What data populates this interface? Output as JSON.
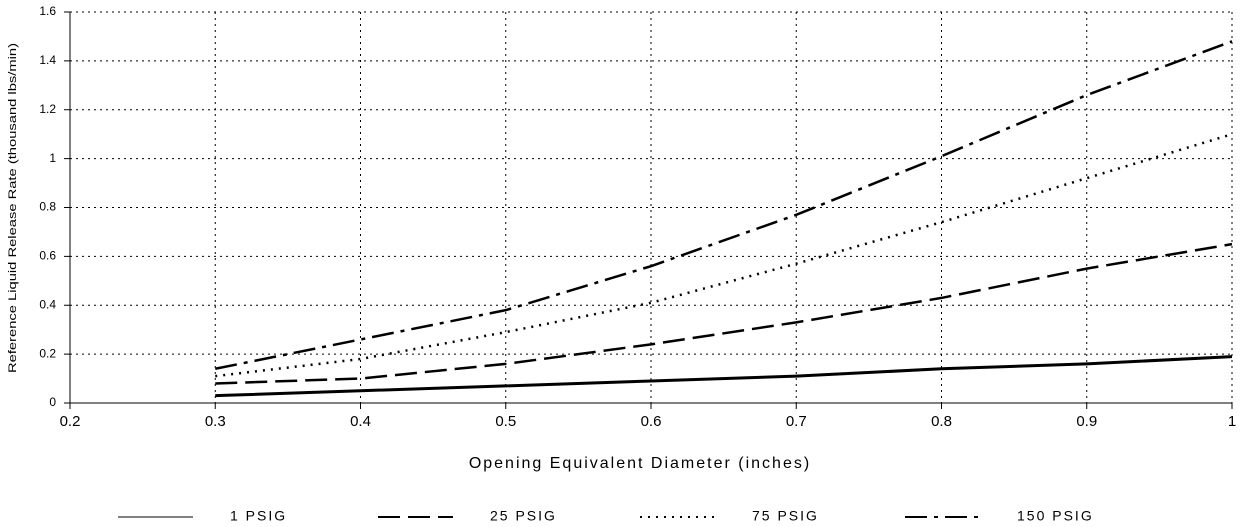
{
  "chart_data": {
    "type": "line",
    "xlabel": "Opening Equivalent Diameter (inches)",
    "ylabel": "Reference Liquid Release Rate (thousand lbs/min)",
    "x": [
      0.3,
      0.4,
      0.5,
      0.6,
      0.7,
      0.8,
      0.9,
      1
    ],
    "series": [
      {
        "name": "1 PSIG",
        "color": "#000000",
        "style": "solid",
        "values": [
          0.03,
          0.05,
          0.07,
          0.09,
          0.11,
          0.14,
          0.16,
          0.19
        ]
      },
      {
        "name": "25 PSIG",
        "color": "#000000",
        "style": "dashed",
        "values": [
          0.08,
          0.1,
          0.16,
          0.24,
          0.33,
          0.43,
          0.55,
          0.65
        ]
      },
      {
        "name": "75 PSIG",
        "color": "#000000",
        "style": "dotted",
        "values": [
          0.11,
          0.18,
          0.29,
          0.41,
          0.57,
          0.74,
          0.92,
          1.1
        ]
      },
      {
        "name": "150 PSIG",
        "color": "#000000",
        "style": "dashdot",
        "values": [
          0.14,
          0.26,
          0.38,
          0.56,
          0.77,
          1.01,
          1.26,
          1.48
        ]
      }
    ],
    "xlim": [
      0.2,
      1
    ],
    "xticks": [
      0.2,
      0.3,
      0.4,
      0.5,
      0.6,
      0.7,
      0.8,
      0.9,
      1
    ],
    "ylim": [
      0,
      1.6
    ],
    "yticks": [
      0,
      0.2,
      0.4,
      0.6,
      0.8,
      1,
      1.2,
      1.4,
      1.6
    ],
    "grid": true,
    "legend": "bottom"
  }
}
